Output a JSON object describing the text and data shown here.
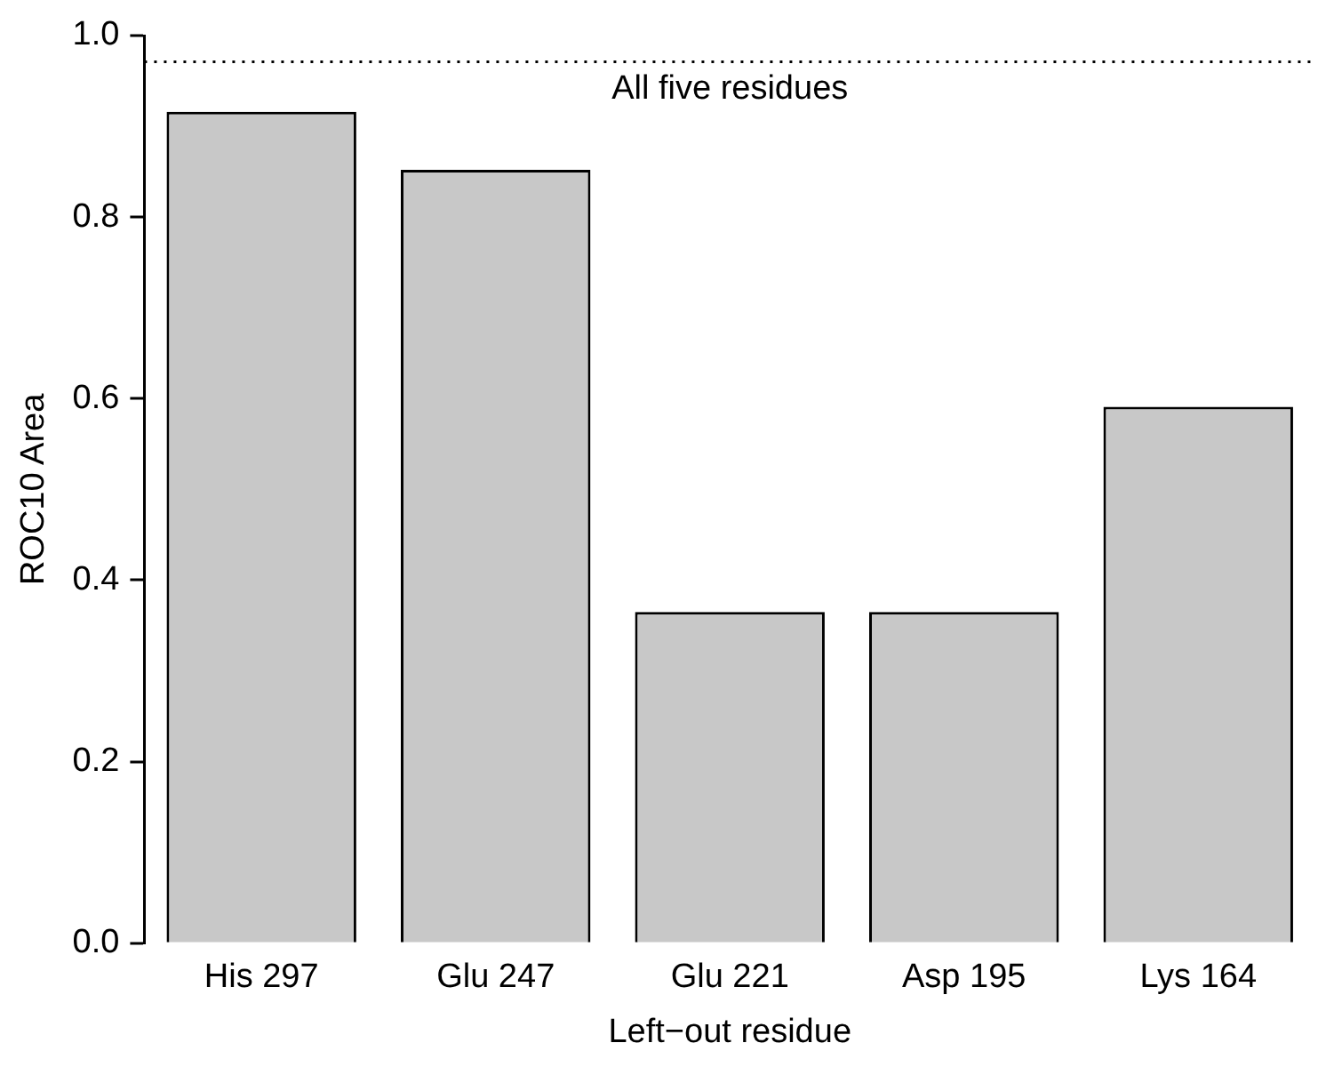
{
  "chart_data": {
    "type": "bar",
    "xlabel": "Left−out residue",
    "ylabel": "ROC10 Area",
    "categories": [
      "His 297",
      "Glu 247",
      "Glu 221",
      "Asp 195",
      "Lys 164"
    ],
    "values": [
      0.916,
      0.852,
      0.365,
      0.365,
      0.591
    ],
    "color": "#c8c8c8",
    "ylim": [
      0,
      1
    ],
    "yticks": [
      {
        "value": 0,
        "label": "0.0"
      },
      0.2,
      0.4,
      0.6,
      0.8,
      {
        "value": 1,
        "label": "1.0"
      }
    ],
    "ref_lines": [
      {
        "axis": "y",
        "value": 0.971,
        "label": "All five residues",
        "line_style": "dotted",
        "color": "#000000"
      }
    ],
    "grid": false,
    "legend": false
  }
}
